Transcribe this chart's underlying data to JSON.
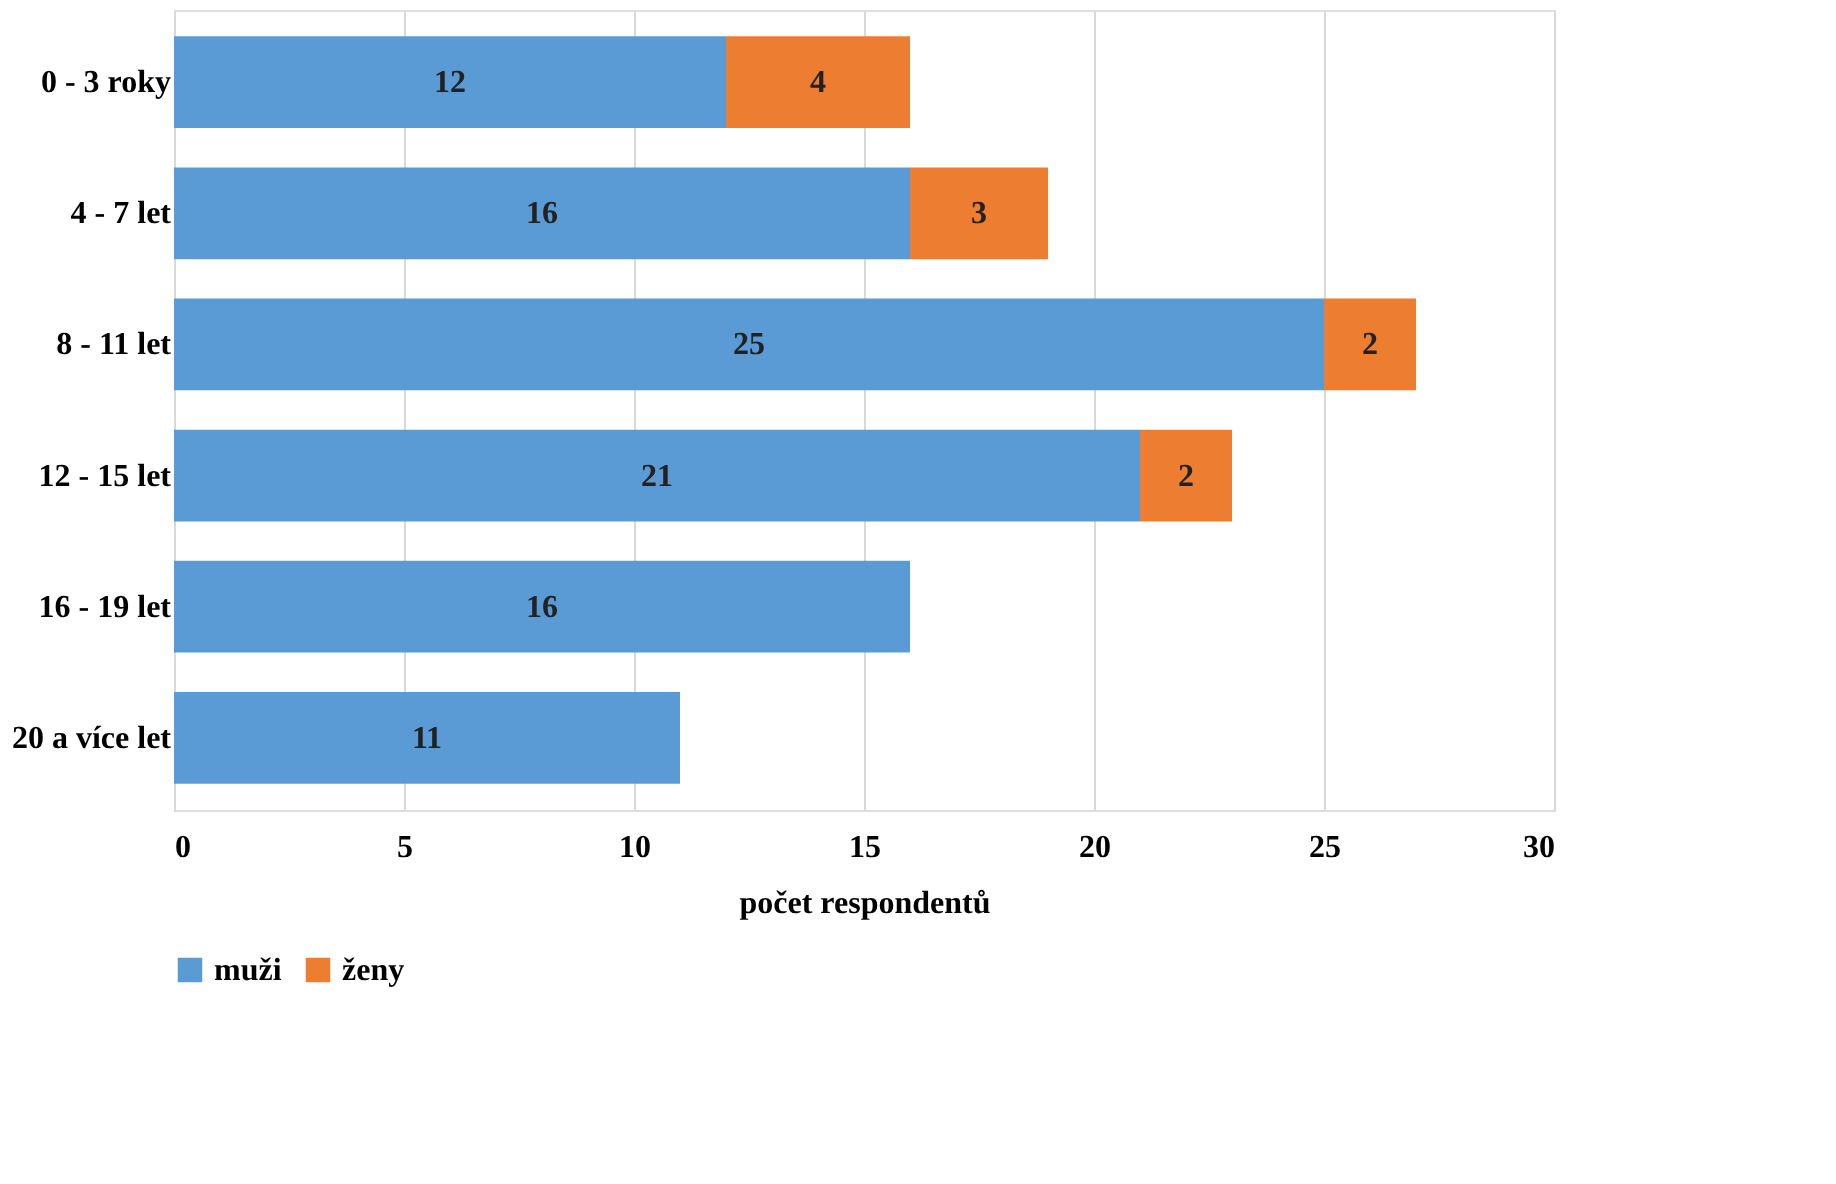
{
  "chart_data": {
    "type": "bar",
    "orientation": "horizontal",
    "stacked": true,
    "xlabel": "počet respondentů",
    "categories": [
      "0 - 3 roky",
      "4 - 7 let",
      "8 - 11 let",
      "12 - 15 let",
      "16 - 19 let",
      "20 a více let"
    ],
    "series": [
      {
        "name": "muži",
        "color": "#5b9bd5",
        "values": [
          12,
          16,
          25,
          21,
          16,
          11
        ]
      },
      {
        "name": "ženy",
        "color": "#ed7d31",
        "values": [
          4,
          3,
          2,
          2,
          null,
          null
        ]
      }
    ],
    "xlim": [
      0,
      30
    ],
    "xticks": [
      0,
      5,
      10,
      15,
      20,
      25,
      30
    ],
    "grid": "x",
    "legend": "bottom",
    "data_labels": true
  }
}
